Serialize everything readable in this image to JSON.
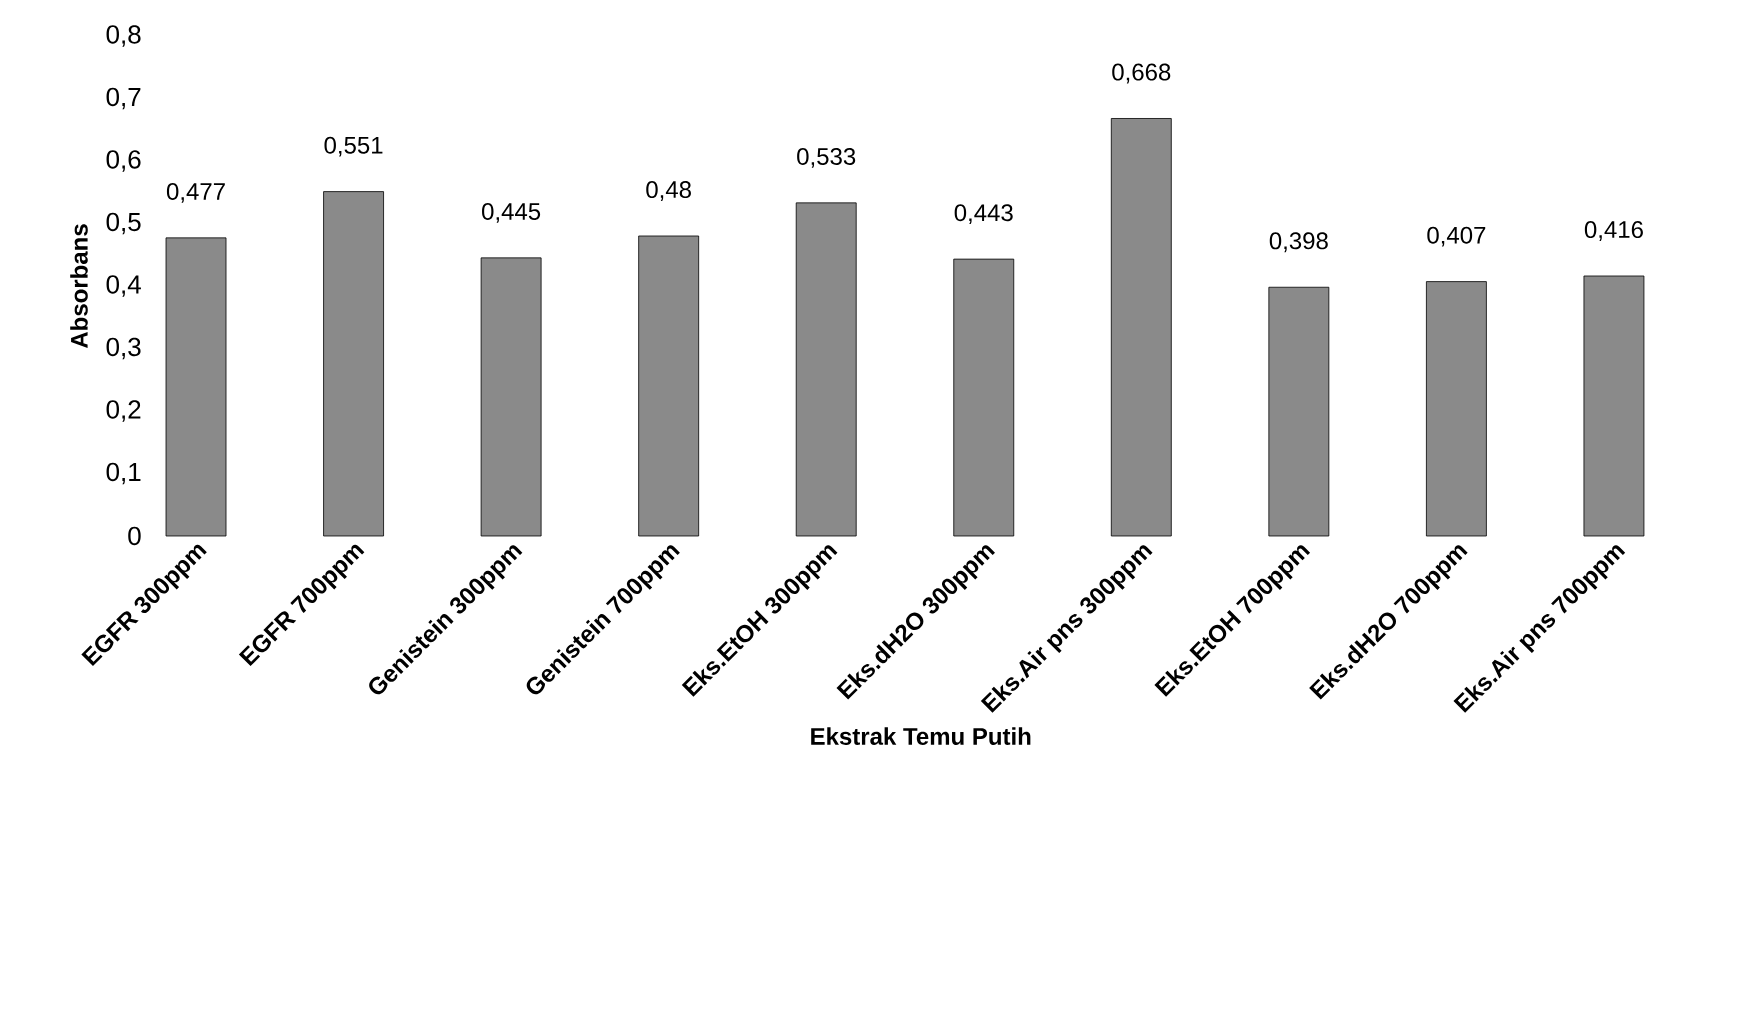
{
  "chart_data": {
    "type": "bar",
    "xlabel": "Ekstrak Temu Putih",
    "ylabel": "Absorbans",
    "categories": [
      "EGFR 300ppm",
      "EGFR 700ppm",
      "Genistein 300ppm",
      "Genistein 700ppm",
      "Eks.EtOH 300ppm",
      "Eks.dH2O 300ppm",
      "Eks.Air pns 300ppm",
      "Eks.EtOH 700ppm",
      "Eks.dH2O 700ppm",
      "Eks.Air pns 700ppm"
    ],
    "values": [
      0.477,
      0.551,
      0.445,
      0.48,
      0.533,
      0.443,
      0.668,
      0.398,
      0.407,
      0.416
    ],
    "value_labels": [
      "0,477",
      "0,551",
      "0,445",
      "0,48",
      "0,533",
      "0,443",
      "0,668",
      "0,398",
      "0,407",
      "0,416"
    ],
    "color": "#8a8a8a",
    "ylim": [
      0,
      0.8
    ],
    "yticks": [
      {
        "value": 0,
        "label": "0"
      },
      {
        "value": 0.1,
        "label": "0,1"
      },
      {
        "value": 0.2,
        "label": "0,2"
      },
      {
        "value": 0.3,
        "label": "0,3"
      },
      {
        "value": 0.4,
        "label": "0,4"
      },
      {
        "value": 0.5,
        "label": "0,5"
      },
      {
        "value": 0.6,
        "label": "0,6"
      },
      {
        "value": 0.7,
        "label": "0,7"
      },
      {
        "value": 0.8,
        "label": "0,8"
      }
    ],
    "grid": false
  }
}
